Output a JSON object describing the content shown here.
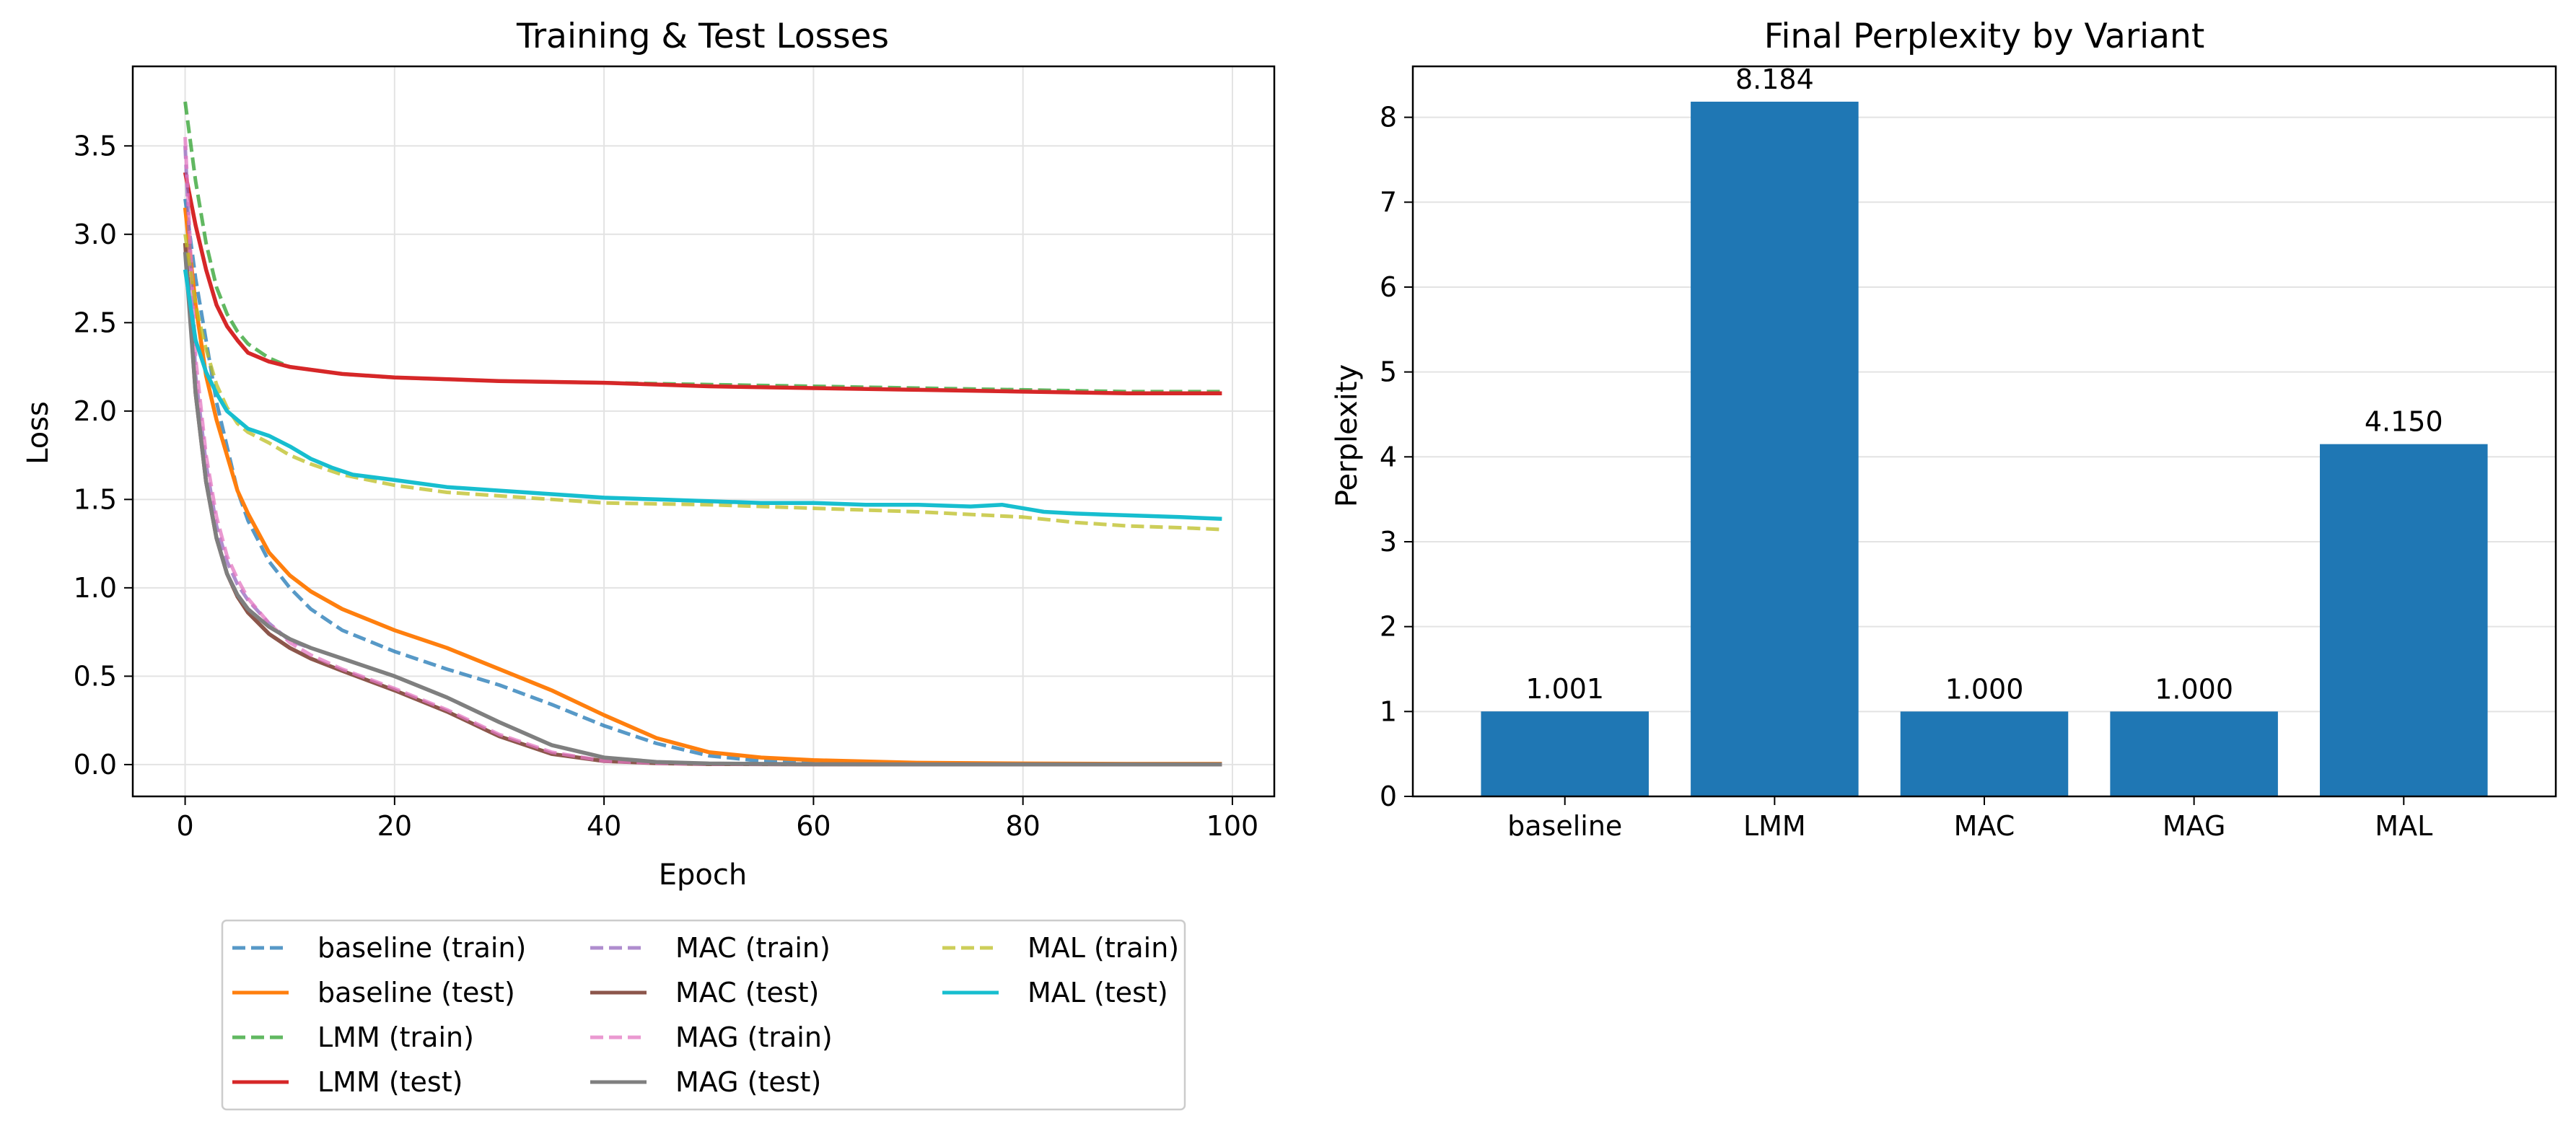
{
  "chart_data": [
    {
      "type": "line",
      "title": "Training & Test Losses",
      "xlabel": "Epoch",
      "ylabel": "Loss",
      "xlim": [
        -5,
        104
      ],
      "ylim": [
        -0.18,
        3.95
      ],
      "xticks": [
        0,
        20,
        40,
        60,
        80,
        100
      ],
      "yticks": [
        0.0,
        0.5,
        1.0,
        1.5,
        2.0,
        2.5,
        3.0,
        3.5
      ],
      "ytick_labels": [
        "0.0",
        "0.5",
        "1.0",
        "1.5",
        "2.0",
        "2.5",
        "3.0",
        "3.5"
      ],
      "grid": true,
      "legend_position": "below",
      "series": [
        {
          "name": "baseline (train)",
          "color": "#1f77b4",
          "dashed": true,
          "x": [
            0,
            1,
            2,
            3,
            4,
            5,
            6,
            8,
            10,
            12,
            15,
            20,
            25,
            30,
            35,
            40,
            45,
            50,
            55,
            60,
            70,
            80,
            90,
            99
          ],
          "y": [
            3.2,
            2.75,
            2.4,
            2.05,
            1.8,
            1.55,
            1.38,
            1.15,
            1.0,
            0.88,
            0.76,
            0.64,
            0.54,
            0.45,
            0.34,
            0.22,
            0.12,
            0.05,
            0.02,
            0.01,
            0.005,
            0.004,
            0.003,
            0.003
          ]
        },
        {
          "name": "baseline (test)",
          "color": "#ff7f0e",
          "dashed": false,
          "x": [
            0,
            1,
            2,
            3,
            4,
            5,
            6,
            8,
            10,
            12,
            15,
            20,
            25,
            30,
            35,
            40,
            45,
            50,
            55,
            60,
            70,
            80,
            90,
            99
          ],
          "y": [
            3.15,
            2.6,
            2.2,
            1.95,
            1.75,
            1.55,
            1.42,
            1.2,
            1.07,
            0.98,
            0.88,
            0.76,
            0.66,
            0.54,
            0.42,
            0.28,
            0.15,
            0.07,
            0.04,
            0.025,
            0.01,
            0.006,
            0.004,
            0.004
          ]
        },
        {
          "name": "LMM (train)",
          "color": "#2ca02c",
          "dashed": true,
          "x": [
            0,
            1,
            2,
            3,
            4,
            5,
            6,
            8,
            10,
            15,
            20,
            30,
            40,
            50,
            60,
            70,
            80,
            90,
            99
          ],
          "y": [
            3.75,
            3.3,
            2.95,
            2.7,
            2.55,
            2.45,
            2.38,
            2.3,
            2.25,
            2.21,
            2.19,
            2.17,
            2.16,
            2.15,
            2.14,
            2.13,
            2.12,
            2.11,
            2.11
          ]
        },
        {
          "name": "LMM (test)",
          "color": "#d62728",
          "dashed": false,
          "x": [
            0,
            1,
            2,
            3,
            4,
            5,
            6,
            8,
            10,
            15,
            20,
            30,
            40,
            50,
            60,
            70,
            80,
            90,
            99
          ],
          "y": [
            3.35,
            3.05,
            2.8,
            2.6,
            2.48,
            2.4,
            2.33,
            2.28,
            2.25,
            2.21,
            2.19,
            2.17,
            2.16,
            2.14,
            2.13,
            2.12,
            2.11,
            2.1,
            2.1
          ]
        },
        {
          "name": "MAC (train)",
          "color": "#9467bd",
          "dashed": true,
          "x": [
            0,
            1,
            2,
            3,
            4,
            5,
            6,
            8,
            10,
            12
          ],
          "y": [
            3.5,
            2.2,
            1.7,
            1.35,
            1.15,
            1.02,
            0.93,
            0.8,
            0.7,
            0.66
          ]
        },
        {
          "name": "MAC (test)",
          "color": "#8c564b",
          "dashed": false,
          "x": [
            0,
            1,
            2,
            3,
            4,
            5,
            6,
            8,
            10,
            12,
            15,
            20,
            25,
            30,
            35,
            40,
            45,
            50,
            60,
            70,
            80,
            90,
            99
          ],
          "y": [
            2.95,
            2.1,
            1.6,
            1.28,
            1.08,
            0.95,
            0.86,
            0.74,
            0.66,
            0.6,
            0.53,
            0.42,
            0.3,
            0.16,
            0.06,
            0.02,
            0.008,
            0.003,
            0.001,
            0.001,
            0.001,
            0.001,
            0.001
          ]
        },
        {
          "name": "MAG (train)",
          "color": "#e377c2",
          "dashed": true,
          "x": [
            0,
            1,
            2,
            3,
            4,
            5,
            6,
            8,
            10,
            12,
            15,
            20,
            25,
            30,
            35,
            40,
            45,
            50,
            60,
            70,
            80,
            90,
            99
          ],
          "y": [
            3.55,
            2.3,
            1.75,
            1.4,
            1.18,
            1.05,
            0.94,
            0.8,
            0.69,
            0.62,
            0.54,
            0.43,
            0.31,
            0.17,
            0.07,
            0.02,
            0.008,
            0.003,
            0.001,
            0.001,
            0.001,
            0.001,
            0.001
          ]
        },
        {
          "name": "MAG (test)",
          "color": "#7f7f7f",
          "dashed": false,
          "x": [
            0,
            1,
            2,
            3,
            4,
            5,
            6,
            8,
            10,
            12,
            15,
            20,
            25,
            30,
            35,
            40,
            45,
            50,
            60,
            70,
            80,
            90,
            99
          ],
          "y": [
            2.9,
            2.1,
            1.6,
            1.28,
            1.08,
            0.96,
            0.88,
            0.78,
            0.71,
            0.66,
            0.6,
            0.5,
            0.38,
            0.24,
            0.11,
            0.04,
            0.015,
            0.006,
            0.002,
            0.001,
            0.001,
            0.001,
            0.001
          ]
        },
        {
          "name": "MAL (train)",
          "color": "#bcbd22",
          "dashed": true,
          "x": [
            0,
            1,
            2,
            3,
            4,
            5,
            6,
            8,
            10,
            12,
            15,
            20,
            25,
            30,
            40,
            50,
            60,
            70,
            80,
            85,
            90,
            95,
            99
          ],
          "y": [
            3.0,
            2.6,
            2.35,
            2.15,
            2.02,
            1.93,
            1.88,
            1.82,
            1.75,
            1.7,
            1.64,
            1.58,
            1.54,
            1.52,
            1.48,
            1.47,
            1.45,
            1.43,
            1.4,
            1.37,
            1.35,
            1.34,
            1.33
          ]
        },
        {
          "name": "MAL (test)",
          "color": "#17becf",
          "dashed": false,
          "x": [
            0,
            1,
            2,
            3,
            4,
            5,
            6,
            8,
            10,
            12,
            14,
            16,
            20,
            25,
            30,
            35,
            40,
            45,
            50,
            55,
            60,
            65,
            70,
            75,
            78,
            80,
            82,
            85,
            90,
            95,
            99
          ],
          "y": [
            2.8,
            2.4,
            2.22,
            2.1,
            2.0,
            1.95,
            1.9,
            1.86,
            1.8,
            1.73,
            1.68,
            1.64,
            1.61,
            1.57,
            1.55,
            1.53,
            1.51,
            1.5,
            1.49,
            1.48,
            1.48,
            1.47,
            1.47,
            1.46,
            1.47,
            1.45,
            1.43,
            1.42,
            1.41,
            1.4,
            1.39
          ]
        }
      ]
    },
    {
      "type": "bar",
      "title": "Final Perplexity by Variant",
      "xlabel": "",
      "ylabel": "Perplexity",
      "ylim": [
        0,
        8.6
      ],
      "yticks": [
        0,
        1,
        2,
        3,
        4,
        5,
        6,
        7,
        8
      ],
      "grid": true,
      "categories": [
        "baseline",
        "LMM",
        "MAC",
        "MAG",
        "MAL"
      ],
      "values": [
        1.001,
        8.184,
        1.0,
        1.0,
        4.15
      ],
      "value_labels": [
        "1.001",
        "8.184",
        "1.000",
        "1.000",
        "4.150"
      ],
      "color": "#1f77b4"
    }
  ]
}
